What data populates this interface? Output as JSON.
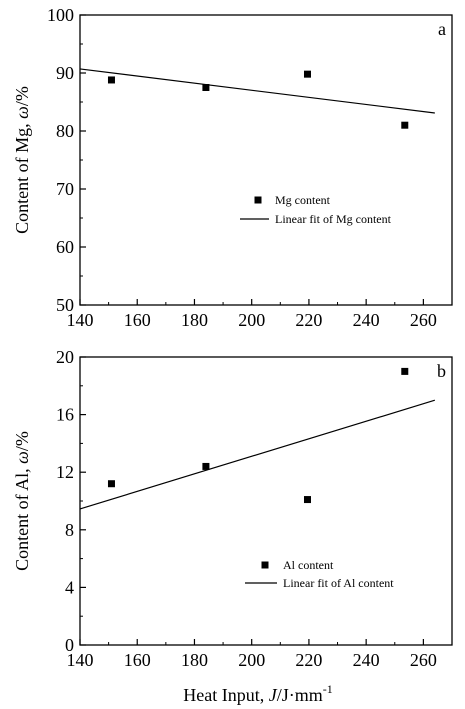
{
  "chart_data": [
    {
      "type": "scatter",
      "panel_label": "a",
      "ylabel_prefix": "Content of Mg, ",
      "ylabel_italic": "ω",
      "ylabel_suffix": "/%",
      "xlim": [
        140,
        270
      ],
      "ylim": [
        50,
        100
      ],
      "xticks": [
        140,
        160,
        180,
        200,
        220,
        240,
        260
      ],
      "yticks": [
        50,
        60,
        70,
        80,
        90,
        100
      ],
      "legend_position": "center",
      "series": [
        {
          "name": "Mg content",
          "x": [
            151,
            184,
            219.5,
            253.5
          ],
          "y": [
            88.8,
            87.5,
            89.8,
            81
          ]
        }
      ],
      "fit": {
        "name": "Linear fit of Mg content",
        "x": [
          140,
          264
        ],
        "y": [
          90.7,
          83.1
        ]
      },
      "colors": {
        "mark": "#000000"
      }
    },
    {
      "type": "scatter",
      "panel_label": "b",
      "ylabel_prefix": "Content of Al, ",
      "ylabel_italic": "ω",
      "ylabel_suffix": "/%",
      "xlabel_prefix": "Heat Input, ",
      "xlabel_italic": "J",
      "xlabel_suffix": "/J·mm",
      "xlabel_sup": "-1",
      "xlim": [
        140,
        270
      ],
      "ylim": [
        0,
        20
      ],
      "xticks": [
        140,
        160,
        180,
        200,
        220,
        240,
        260
      ],
      "yticks": [
        0,
        4,
        8,
        12,
        16,
        20
      ],
      "legend_position": "bottom-center",
      "series": [
        {
          "name": "Al content",
          "x": [
            151,
            184,
            219.5,
            253.5
          ],
          "y": [
            11.2,
            12.4,
            10.1,
            19
          ]
        }
      ],
      "fit": {
        "name": "Linear fit of Al content",
        "x": [
          140,
          264
        ],
        "y": [
          9.45,
          17
        ]
      },
      "colors": {
        "mark": "#000000"
      }
    }
  ]
}
